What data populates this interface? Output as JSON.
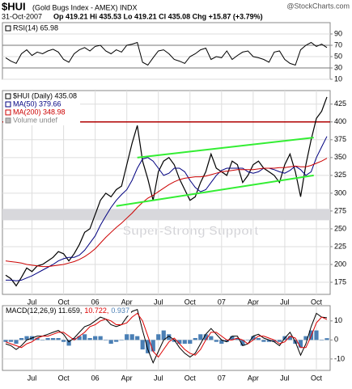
{
  "header": {
    "symbol": "$HUI",
    "name": "(Gold Bugs Index - AMEX) INDX",
    "source": "@StockCharts.com",
    "date": "31-Oct-2007",
    "quote": "Op 419.21 Hi 435.53 Lo 419.21 Cl 435.08 Chg +15.87 (+3.79%)"
  },
  "chart_data": [
    {
      "type": "line",
      "series": [
        {
          "name": "RSI(14) 65.98",
          "color": "#000000",
          "values": [
            48,
            42,
            38,
            55,
            62,
            52,
            58,
            55,
            60,
            63,
            58,
            45,
            40,
            55,
            62,
            66,
            60,
            68,
            70,
            60,
            55,
            62,
            58,
            70,
            72,
            75,
            40,
            35,
            48,
            60,
            62,
            55,
            45,
            42,
            38,
            50,
            55,
            62,
            65,
            45,
            50,
            48,
            60,
            45,
            52,
            58,
            60,
            50,
            48,
            45,
            40,
            58,
            60,
            45,
            38,
            35,
            62,
            70,
            75,
            68,
            72,
            65.98
          ]
        }
      ],
      "ylim": [
        10,
        110
      ],
      "yticks": [
        10,
        30,
        50,
        70,
        90
      ],
      "grid": true,
      "reference_lines": [
        {
          "value": 70,
          "color": "#777777"
        },
        {
          "value": 30,
          "color": "#777777"
        }
      ]
    },
    {
      "type": "line",
      "categories": [
        null,
        null,
        null,
        null,
        null,
        "Jul",
        null,
        null,
        null,
        null,
        null,
        "Oct",
        null,
        null,
        null,
        null,
        null,
        "06",
        null,
        null,
        null,
        null,
        null,
        "Apr",
        null,
        null,
        null,
        null,
        null,
        "Jul",
        null,
        null,
        null,
        null,
        null,
        "Oct",
        null,
        null,
        null,
        null,
        null,
        "07",
        null,
        null,
        null,
        null,
        null,
        "Apr",
        null,
        null,
        null,
        null,
        null,
        "Jul",
        null,
        null,
        null,
        null,
        null,
        "Oct",
        null,
        null
      ],
      "series": [
        {
          "name": "$HUI (Daily) 435.08",
          "color": "#000000",
          "values": [
            185,
            180,
            170,
            182,
            195,
            190,
            198,
            200,
            205,
            210,
            218,
            215,
            205,
            215,
            228,
            245,
            250,
            270,
            290,
            300,
            295,
            305,
            310,
            340,
            370,
            395,
            345,
            320,
            290,
            330,
            345,
            350,
            340,
            320,
            305,
            290,
            295,
            315,
            330,
            355,
            335,
            330,
            325,
            345,
            340,
            315,
            325,
            340,
            345,
            335,
            330,
            325,
            315,
            340,
            355,
            330,
            295,
            340,
            375,
            405,
            415,
            435.08
          ]
        },
        {
          "name": "MA(50) 379.66",
          "color": "#000080",
          "values": [
            178,
            178,
            177,
            178,
            181,
            184,
            188,
            192,
            196,
            200,
            205,
            208,
            210,
            210,
            213,
            220,
            230,
            240,
            255,
            268,
            280,
            290,
            298,
            305,
            318,
            335,
            348,
            350,
            345,
            335,
            325,
            328,
            335,
            335,
            330,
            318,
            308,
            302,
            305,
            315,
            325,
            332,
            335,
            335,
            335,
            335,
            330,
            328,
            330,
            335,
            335,
            333,
            330,
            328,
            332,
            338,
            333,
            325,
            330,
            350,
            365,
            379.66
          ]
        },
        {
          "name": "MA(200) 348.98",
          "color": "#cc0000",
          "values": [
            205,
            204,
            203,
            202,
            200,
            199,
            198,
            197,
            197,
            198,
            199,
            200,
            202,
            204,
            207,
            211,
            216,
            222,
            230,
            238,
            245,
            252,
            258,
            265,
            272,
            280,
            287,
            293,
            297,
            302,
            307,
            312,
            316,
            319,
            321,
            322,
            323,
            323,
            324,
            326,
            328,
            330,
            331,
            332,
            333,
            333,
            333,
            333,
            334,
            335,
            335,
            335,
            336,
            336,
            337,
            338,
            337,
            337,
            339,
            342,
            345,
            348.98
          ]
        }
      ],
      "legend_note": "Volume undef",
      "ylim": [
        158,
        444
      ],
      "yticks": [
        175,
        200,
        225,
        250,
        275,
        300,
        325,
        350,
        375,
        400,
        425
      ],
      "grid": true,
      "reference_lines": [
        {
          "value": 400,
          "color": "#b00000"
        }
      ],
      "bands": [
        {
          "range": [
            262,
            278
          ],
          "color": "#d8d8dc",
          "label": "Super-Strong Support"
        }
      ],
      "trend_lines": [
        {
          "color": "#33ee33",
          "points": [
            [
              21,
              282
            ],
            [
              58.5,
              325
            ]
          ]
        },
        {
          "color": "#33ee33",
          "points": [
            [
              25,
              350
            ],
            [
              58.5,
              378
            ]
          ]
        }
      ]
    },
    {
      "type": "macd",
      "categories": [
        null,
        null,
        null,
        null,
        null,
        "Jul",
        null,
        null,
        null,
        null,
        null,
        "Oct",
        null,
        null,
        null,
        null,
        null,
        "06",
        null,
        null,
        null,
        null,
        null,
        "Apr",
        null,
        null,
        null,
        null,
        null,
        "Jul",
        null,
        null,
        null,
        null,
        null,
        "Oct",
        null,
        null,
        null,
        null,
        null,
        "07",
        null,
        null,
        null,
        null,
        null,
        "Apr",
        null,
        null,
        null,
        null,
        null,
        "Jul",
        null,
        null,
        null,
        null,
        null,
        "Oct",
        null,
        null
      ],
      "series": [
        {
          "name": "MACD(12,26,9) 11.659,",
          "color": "#000000",
          "values": [
            -2,
            -3,
            -5,
            -3,
            0,
            1,
            2,
            2,
            3,
            4,
            5,
            3,
            -1,
            1,
            4,
            7,
            8,
            10,
            12,
            11,
            8,
            7,
            8,
            12,
            15,
            16,
            5,
            -5,
            -12,
            -6,
            0,
            2,
            0,
            -4,
            -7,
            -9,
            -7,
            -2,
            3,
            6,
            3,
            0,
            -1,
            2,
            2,
            -3,
            -2,
            2,
            3,
            1,
            0,
            -1,
            -3,
            1,
            4,
            -1,
            -8,
            -2,
            7,
            14,
            12,
            11.659
          ]
        },
        {
          "name": "10.722,",
          "color": "#dd0000",
          "values": [
            -1,
            -2,
            -3,
            -4,
            -2,
            -1,
            1,
            2,
            2,
            3,
            4,
            4,
            2,
            0,
            2,
            4,
            7,
            8,
            10,
            11,
            10,
            8,
            8,
            9,
            12,
            14,
            10,
            2,
            -6,
            -9,
            -5,
            -1,
            1,
            -2,
            -5,
            -7,
            -8,
            -5,
            0,
            4,
            4,
            2,
            0,
            0,
            1,
            0,
            -2,
            0,
            2,
            2,
            1,
            0,
            -2,
            -1,
            2,
            1,
            -4,
            -4,
            2,
            9,
            12,
            10.722
          ]
        },
        {
          "name": "0.937",
          "color": "#4a7fb5",
          "style": "histogram",
          "values": [
            -1,
            -1,
            -2,
            1,
            2,
            2,
            1,
            0,
            1,
            1,
            1,
            -1,
            -3,
            1,
            2,
            3,
            1,
            2,
            2,
            0,
            -2,
            -1,
            0,
            3,
            3,
            2,
            -5,
            -7,
            -6,
            3,
            5,
            3,
            -1,
            -2,
            -2,
            -2,
            1,
            3,
            3,
            2,
            -1,
            -2,
            -1,
            2,
            1,
            -3,
            0,
            2,
            1,
            -1,
            -1,
            -1,
            -1,
            2,
            2,
            -2,
            -4,
            2,
            5,
            5,
            0,
            0.937
          ]
        }
      ],
      "ylim": [
        -16,
        18
      ],
      "yticks": [
        -10,
        0,
        10
      ],
      "grid": true
    }
  ]
}
